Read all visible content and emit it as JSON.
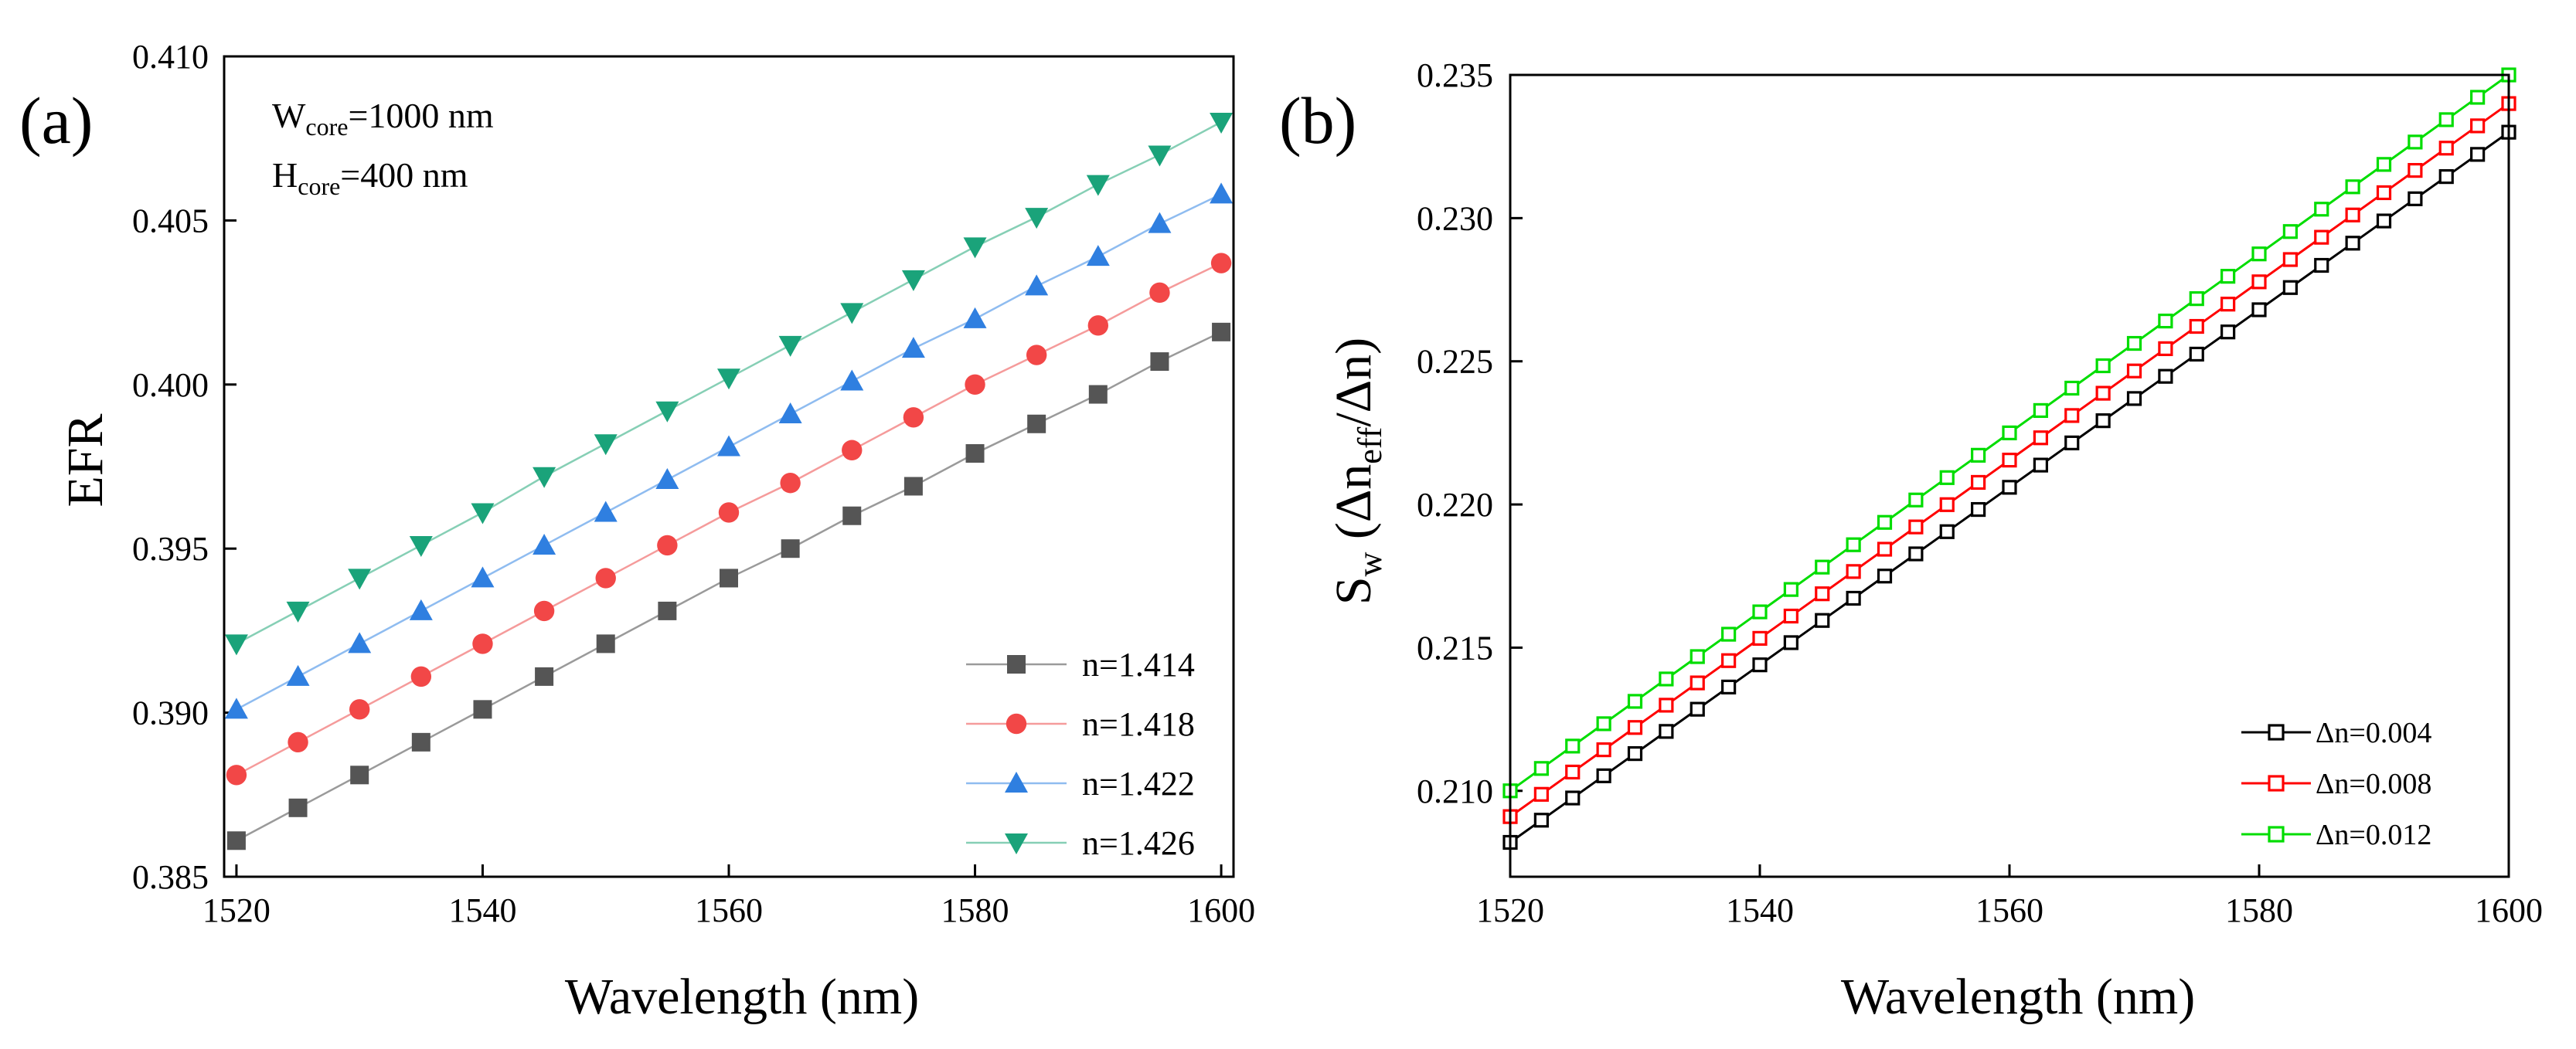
{
  "chart_data": [
    {
      "type": "line",
      "panel_label": "(a)",
      "xlabel": "Wavelength (nm)",
      "ylabel": "EFR",
      "xlim": [
        1519,
        1601
      ],
      "ylim": [
        0.385,
        0.41
      ],
      "xticks": [
        1520,
        1540,
        1560,
        1580,
        1600
      ],
      "xtick_labels": [
        "1520",
        "1540",
        "1560",
        "1580",
        "1600"
      ],
      "yticks": [
        0.385,
        0.39,
        0.395,
        0.4,
        0.405,
        0.41
      ],
      "ytick_labels": [
        "0.385",
        "0.390",
        "0.395",
        "0.400",
        "0.405",
        "0.410"
      ],
      "grid": false,
      "legend_position": "bottom-right",
      "annotation": {
        "line1_main": "W",
        "line1_sub": "core",
        "line1_rest": "=1000 nm",
        "line2_main": "H",
        "line2_sub": "core",
        "line2_rest": "=400 nm"
      },
      "x": [
        1520,
        1525,
        1530,
        1535,
        1540,
        1545,
        1550,
        1555,
        1560,
        1565,
        1570,
        1575,
        1580,
        1585,
        1590,
        1595,
        1600
      ],
      "series": [
        {
          "name": "n=1.414",
          "color": "#555555",
          "line_color": "#9a9a9a",
          "marker": "square",
          "values": [
            0.3861,
            0.3871,
            0.3881,
            0.3891,
            0.3901,
            0.3911,
            0.3921,
            0.3931,
            0.3941,
            0.395,
            0.396,
            0.3969,
            0.3979,
            0.3988,
            0.3997,
            0.4007,
            0.4016
          ]
        },
        {
          "name": "n=1.418",
          "color": "#f24747",
          "line_color": "#f59b9b",
          "marker": "circle",
          "values": [
            0.3881,
            0.3891,
            0.3901,
            0.3911,
            0.3921,
            0.3931,
            0.3941,
            0.3951,
            0.3961,
            0.397,
            0.398,
            0.399,
            0.4,
            0.4009,
            0.4018,
            0.4028,
            0.4037
          ]
        },
        {
          "name": "n=1.422",
          "color": "#2f7fe0",
          "line_color": "#8fbcf0",
          "marker": "triangle-up",
          "values": [
            0.3901,
            0.3911,
            0.3921,
            0.3931,
            0.3941,
            0.3951,
            0.3961,
            0.3971,
            0.3981,
            0.3991,
            0.4001,
            0.4011,
            0.402,
            0.403,
            0.4039,
            0.4049,
            0.4058
          ]
        },
        {
          "name": "n=1.426",
          "color": "#1aa37a",
          "line_color": "#86cfb5",
          "marker": "triangle-down",
          "values": [
            0.3921,
            0.3931,
            0.3941,
            0.3951,
            0.3961,
            0.3972,
            0.3982,
            0.3992,
            0.4002,
            0.4012,
            0.4022,
            0.4032,
            0.4042,
            0.4051,
            0.4061,
            0.407,
            0.408
          ]
        }
      ]
    },
    {
      "type": "line",
      "panel_label": "(b)",
      "xlabel": "Wavelength (nm)",
      "ylabel": {
        "prefix": "S",
        "sub_w": "w",
        "open": " (Δn",
        "sub_eff": "eff",
        "close": "/Δn)"
      },
      "xlim": [
        1520,
        1600
      ],
      "ylim": [
        0.207,
        0.235
      ],
      "xticks": [
        1520,
        1540,
        1560,
        1580,
        1600
      ],
      "xtick_labels": [
        "1520",
        "1540",
        "1560",
        "1580",
        "1600"
      ],
      "yticks": [
        0.21,
        0.215,
        0.22,
        0.225,
        0.23,
        0.235
      ],
      "ytick_labels": [
        "0.210",
        "0.215",
        "0.220",
        "0.225",
        "0.230",
        "0.235"
      ],
      "grid": false,
      "legend_position": "bottom-right",
      "x_start": 1520,
      "x_end": 1600,
      "x_step": 2.5,
      "series": [
        {
          "name": "Δn=0.004",
          "color": "#000000",
          "marker": "open-square",
          "start": 0.2082,
          "end": 0.233
        },
        {
          "name": "Δn=0.008",
          "color": "#ff0000",
          "marker": "open-square",
          "start": 0.2091,
          "end": 0.234
        },
        {
          "name": "Δn=0.012",
          "color": "#00dd00",
          "marker": "open-square",
          "start": 0.21,
          "end": 0.235
        }
      ]
    }
  ]
}
